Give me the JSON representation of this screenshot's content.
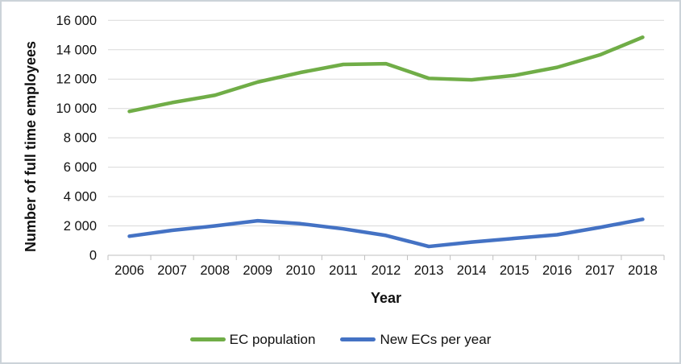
{
  "chart_data": {
    "type": "line",
    "title": "",
    "xlabel": "Year",
    "ylabel": "Number of full time employees",
    "categories": [
      "2006",
      "2007",
      "2008",
      "2009",
      "2010",
      "2011",
      "2012",
      "2013",
      "2014",
      "2015",
      "2016",
      "2017",
      "2018"
    ],
    "series": [
      {
        "name": "EC population",
        "color": "#70AD47",
        "values": [
          9800,
          10400,
          10900,
          11800,
          12450,
          13000,
          13050,
          12050,
          11950,
          12250,
          12800,
          13650,
          14850
        ]
      },
      {
        "name": "New ECs per year",
        "color": "#4472C4",
        "values": [
          1300,
          1700,
          2000,
          2350,
          2150,
          1800,
          1350,
          600,
          900,
          1150,
          1400,
          1900,
          2450
        ]
      }
    ],
    "ylim": [
      0,
      16000
    ],
    "y_ticks": [
      0,
      2000,
      4000,
      6000,
      8000,
      10000,
      12000,
      14000,
      16000
    ],
    "y_tick_labels": [
      "0",
      "2 000",
      "4 000",
      "6 000",
      "8 000",
      "10 000",
      "12 000",
      "14 000",
      "16 000"
    ],
    "grid": "horizontal",
    "legend_position": "bottom"
  }
}
